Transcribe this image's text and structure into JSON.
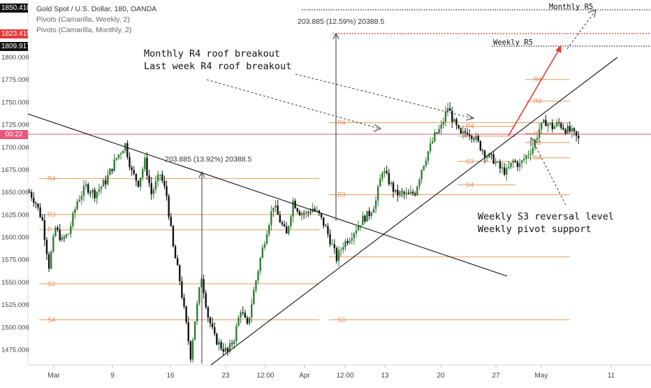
{
  "legend": {
    "main": "Gold Spot / U.S. Dollar, 180, OANDA",
    "weekly": "Pivots (Camarilla, Weekly, 2)",
    "monthly": "Pivots (Camarilla, Monthly, 2)"
  },
  "price_tags": {
    "top": "1850.410",
    "red": "1823.415",
    "black": "1809.917",
    "time": "00:22"
  },
  "annotations": {
    "monthly_breakout": "Monthly R4 roof breakout",
    "weekly_breakout": "Last week R4 roof breakout",
    "weekly_s3": "Weekly S3 reversal level",
    "weekly_pivot": "Weekly pivot support",
    "monthly_r5": "Monthly R5",
    "weekly_r5": "Weekly R5",
    "measure1": "203.885 (13.92%) 20388.5",
    "measure2": "203.885 (12.59%) 20388.5"
  },
  "colors": {
    "bull": "#2e7d32",
    "bear": "#111111",
    "pivot_line": "#e08a45",
    "pivot_label": "#d98c5a",
    "price_line": "#e8577a",
    "arrow_red": "#e53935"
  },
  "chart_data": {
    "type": "candlestick",
    "symbol": "XAUUSD",
    "ylim": [
      1460,
      1862
    ],
    "y_ticks": [
      1475,
      1500,
      1525,
      1550,
      1575,
      1600,
      1625,
      1650,
      1675,
      1700,
      1725,
      1750,
      1775,
      1800
    ],
    "y_tick_labels": [
      "1475.000",
      "1500.000",
      "1525.000",
      "1550.000",
      "1575.000",
      "1600.000",
      "1625.000",
      "1650.000",
      "1675.000",
      "1700.000",
      "1725.000",
      "1750.000",
      "1775.000",
      "1800.000"
    ],
    "x_tick_labels": [
      "Mar",
      "9",
      "16",
      "23",
      "12:00",
      "Apr",
      "12:00",
      "13",
      "20",
      "27",
      "May",
      "11"
    ],
    "price_path": [
      [
        0,
        1650
      ],
      [
        3,
        1638
      ],
      [
        6,
        1618
      ],
      [
        9,
        1568
      ],
      [
        12,
        1610
      ],
      [
        15,
        1596
      ],
      [
        18,
        1604
      ],
      [
        22,
        1640
      ],
      [
        26,
        1656
      ],
      [
        30,
        1648
      ],
      [
        35,
        1662
      ],
      [
        40,
        1688
      ],
      [
        44,
        1703
      ],
      [
        47,
        1672
      ],
      [
        50,
        1660
      ],
      [
        53,
        1684
      ],
      [
        56,
        1648
      ],
      [
        60,
        1670
      ],
      [
        63,
        1646
      ],
      [
        66,
        1588
      ],
      [
        69,
        1552
      ],
      [
        72,
        1502
      ],
      [
        74,
        1468
      ],
      [
        76,
        1508
      ],
      [
        79,
        1556
      ],
      [
        82,
        1512
      ],
      [
        85,
        1488
      ],
      [
        88,
        1478
      ],
      [
        91,
        1472
      ],
      [
        94,
        1488
      ],
      [
        97,
        1520
      ],
      [
        100,
        1500
      ],
      [
        103,
        1540
      ],
      [
        106,
        1576
      ],
      [
        109,
        1608
      ],
      [
        112,
        1636
      ],
      [
        115,
        1618
      ],
      [
        118,
        1602
      ],
      [
        121,
        1640
      ],
      [
        124,
        1628
      ],
      [
        127,
        1626
      ],
      [
        130,
        1632
      ],
      [
        133,
        1624
      ],
      [
        136,
        1610
      ],
      [
        139,
        1590
      ],
      [
        141,
        1576
      ],
      [
        144,
        1592
      ],
      [
        147,
        1600
      ],
      [
        150,
        1610
      ],
      [
        153,
        1620
      ],
      [
        156,
        1626
      ],
      [
        159,
        1640
      ],
      [
        162,
        1675
      ],
      [
        165,
        1662
      ],
      [
        168,
        1648
      ],
      [
        171,
        1648
      ],
      [
        174,
        1646
      ],
      [
        177,
        1650
      ],
      [
        180,
        1676
      ],
      [
        183,
        1695
      ],
      [
        186,
        1712
      ],
      [
        189,
        1722
      ],
      [
        192,
        1744
      ],
      [
        195,
        1726
      ],
      [
        198,
        1712
      ],
      [
        201,
        1718
      ],
      [
        204,
        1712
      ],
      [
        207,
        1700
      ],
      [
        210,
        1690
      ],
      [
        213,
        1686
      ],
      [
        216,
        1676
      ],
      [
        219,
        1672
      ],
      [
        222,
        1684
      ],
      [
        225,
        1680
      ],
      [
        228,
        1690
      ],
      [
        231,
        1700
      ],
      [
        234,
        1720
      ],
      [
        237,
        1728
      ],
      [
        240,
        1722
      ],
      [
        243,
        1726
      ],
      [
        246,
        1720
      ],
      [
        249,
        1716
      ],
      [
        252,
        1708
      ]
    ],
    "pivots": [
      {
        "label": "R4",
        "price": 1665,
        "x0": 0,
        "x1": 133,
        "label_x": 0
      },
      {
        "label": "R3",
        "price": 1625,
        "x0": 0,
        "x1": 133,
        "label_x": 0
      },
      {
        "label": "P",
        "price": 1608,
        "x0": 0,
        "x1": 133,
        "label_x": 0
      },
      {
        "label": "S3",
        "price": 1548,
        "x0": 0,
        "x1": 133,
        "label_x": 0
      },
      {
        "label": "S4",
        "price": 1508,
        "x0": 0,
        "x1": 133,
        "label_x": 0
      },
      {
        "label": "R4",
        "price": 1727,
        "x0": 133,
        "x1": 248,
        "label_x": 133
      },
      {
        "label": "R3",
        "price": 1647,
        "x0": 133,
        "x1": 248,
        "label_x": 133
      },
      {
        "label": "P",
        "price": 1578,
        "x0": 133,
        "x1": 248,
        "label_x": 133
      },
      {
        "label": "S3",
        "price": 1508,
        "x0": 133,
        "x1": 248,
        "label_x": 133
      },
      {
        "label": "R4",
        "price": 1723,
        "x0": 192,
        "x1": 223,
        "label_x": 192
      },
      {
        "label": "P",
        "price": 1712,
        "x0": 192,
        "x1": 223,
        "label_x": 192
      },
      {
        "label": "S3",
        "price": 1684,
        "x0": 192,
        "x1": 223,
        "label_x": 192
      },
      {
        "label": "S4",
        "price": 1658,
        "x0": 192,
        "x1": 223,
        "label_x": 192
      },
      {
        "label": "R4",
        "price": 1775,
        "x0": 223,
        "x1": 248,
        "label_x": 223
      },
      {
        "label": "R3",
        "price": 1751,
        "x0": 223,
        "x1": 248,
        "label_x": 223
      },
      {
        "label": "P",
        "price": 1715,
        "x0": 223,
        "x1": 248,
        "label_x": 223
      },
      {
        "label": "S3",
        "price": 1705,
        "x0": 223,
        "x1": 248,
        "label_x": 223
      },
      {
        "label": "S4",
        "price": 1688,
        "x0": 223,
        "x1": 248,
        "label_x": 223
      }
    ],
    "current_price": 1711,
    "monthly_r5": 1850.41,
    "red_level": 1823.415,
    "weekly_r5": 1809.917,
    "grid": false
  }
}
